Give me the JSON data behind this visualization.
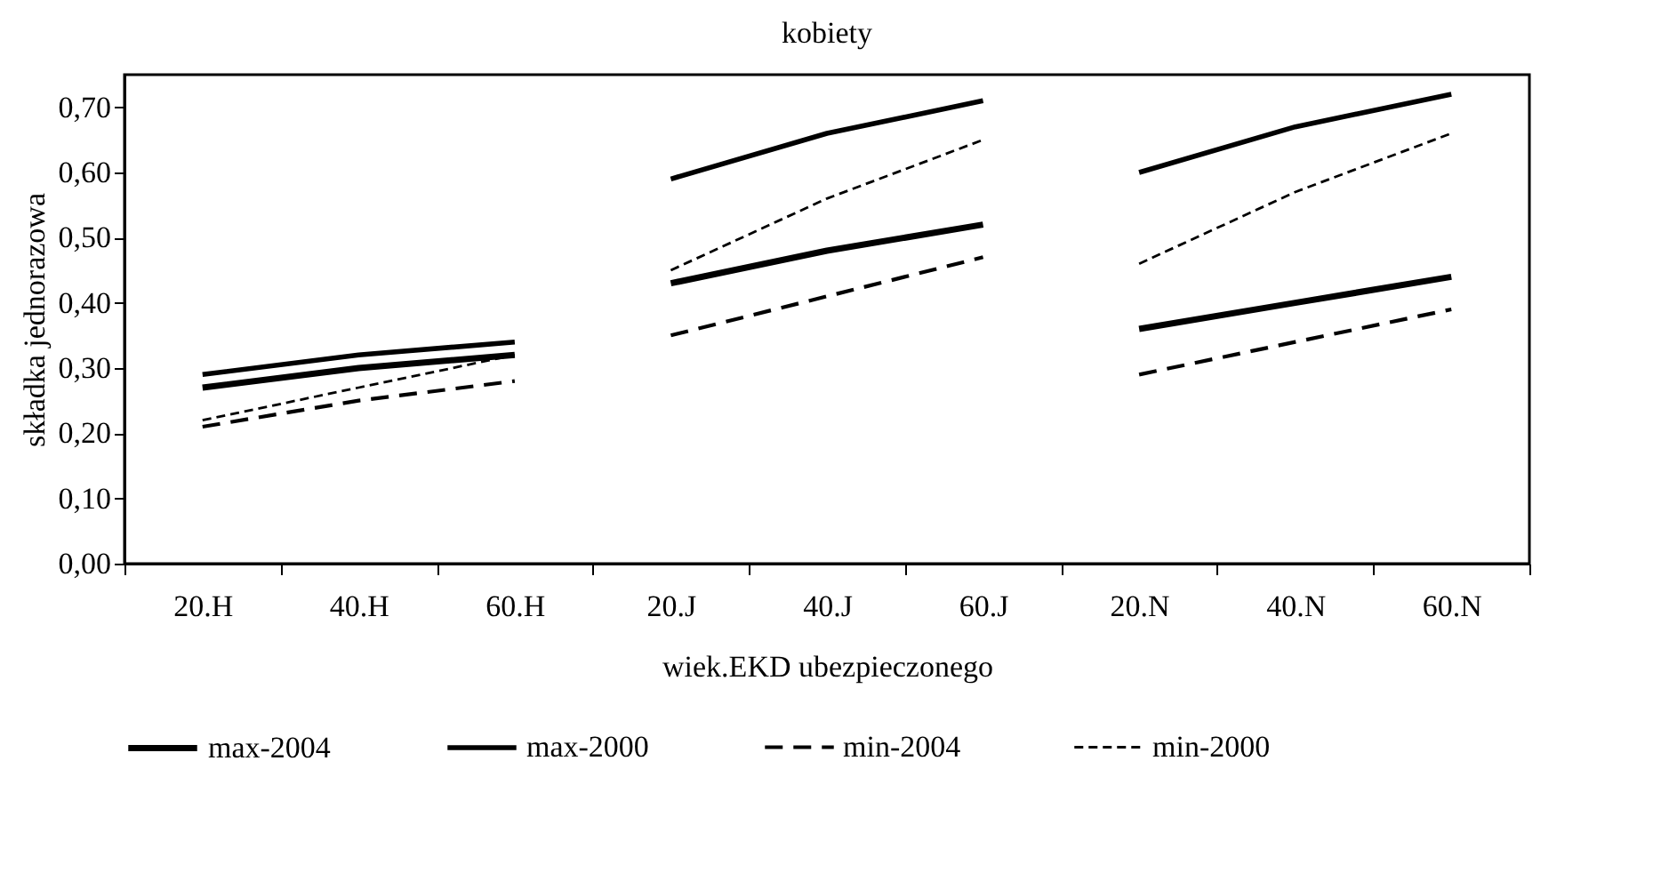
{
  "chart_data": {
    "type": "line",
    "title": "kobiety",
    "xlabel": "wiek.EKD ubezpieczonego",
    "ylabel": "składka jednorazowa",
    "categories": [
      "20.H",
      "40.H",
      "60.H",
      "20.J",
      "40.J",
      "60.J",
      "20.N",
      "40.N",
      "60.N"
    ],
    "ylim": [
      0,
      0.75
    ],
    "yticks": [
      {
        "value": 0,
        "label": "0,00"
      },
      {
        "value": 0.1,
        "label": "0,10"
      },
      {
        "value": 0.2,
        "label": "0,20"
      },
      {
        "value": 0.3,
        "label": "0,30"
      },
      {
        "value": 0.4,
        "label": "0,40"
      },
      {
        "value": 0.5,
        "label": "0,50"
      },
      {
        "value": 0.6,
        "label": "0,60"
      },
      {
        "value": 0.7,
        "label": "0,70"
      }
    ],
    "grid": false,
    "legend": "bottom",
    "marker": "none",
    "series": [
      {
        "name": "max-2004",
        "color": "#000000",
        "line_style": "solid",
        "x": [
          "20.H",
          "40.H",
          "60.H"
        ],
        "values": [
          0.27,
          0.3,
          0.32
        ]
      },
      {
        "name": "max-2000",
        "color": "#000000",
        "line_style": "solid",
        "x": [
          "20.H",
          "40.H",
          "60.H"
        ],
        "values": [
          0.29,
          0.32,
          0.34
        ]
      },
      {
        "name": "min-2004",
        "color": "#000000",
        "line_style": "dashed",
        "x": [
          "20.H",
          "40.H",
          "60.H"
        ],
        "values": [
          0.21,
          0.25,
          0.28
        ]
      },
      {
        "name": "min-2000",
        "color": "#000000",
        "line_style": "dashed",
        "x": [
          "20.H",
          "40.H",
          "60.H"
        ],
        "values": [
          0.22,
          0.27,
          0.32
        ]
      },
      {
        "color": "#000000",
        "line_style": "solid",
        "x": [
          "20.J",
          "40.J",
          "60.J"
        ],
        "values": [
          0.43,
          0.48,
          0.52
        ]
      },
      {
        "color": "#000000",
        "line_style": "solid",
        "x": [
          "20.J",
          "40.J",
          "60.J"
        ],
        "values": [
          0.59,
          0.66,
          0.71
        ]
      },
      {
        "color": "#000000",
        "line_style": "dashed",
        "x": [
          "20.J",
          "40.J",
          "60.J"
        ],
        "values": [
          0.35,
          0.41,
          0.47
        ]
      },
      {
        "color": "#000000",
        "line_style": "dashed",
        "x": [
          "20.J",
          "40.J",
          "60.J"
        ],
        "values": [
          0.45,
          0.56,
          0.65
        ]
      },
      {
        "color": "#000000",
        "line_style": "solid",
        "x": [
          "20.N",
          "40.N",
          "60.N"
        ],
        "values": [
          0.36,
          0.4,
          0.44
        ]
      },
      {
        "color": "#000000",
        "line_style": "solid",
        "x": [
          "20.N",
          "40.N",
          "60.N"
        ],
        "values": [
          0.6,
          0.67,
          0.72
        ]
      },
      {
        "color": "#000000",
        "line_style": "dashed",
        "x": [
          "20.N",
          "40.N",
          "60.N"
        ],
        "values": [
          0.29,
          0.34,
          0.39
        ]
      },
      {
        "color": "#000000",
        "line_style": "dashed",
        "x": [
          "20.N",
          "40.N",
          "60.N"
        ],
        "values": [
          0.46,
          0.57,
          0.66
        ]
      }
    ]
  }
}
